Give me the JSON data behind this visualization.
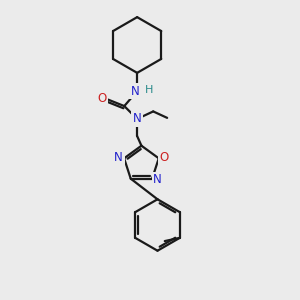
{
  "bg_color": "#ebebeb",
  "bond_color": "#1a1a1a",
  "N_color": "#2222cc",
  "O_color": "#cc2222",
  "H_color": "#2a8a8a",
  "bond_width": 1.6,
  "figsize": [
    3.0,
    3.0
  ],
  "dpi": 100,
  "xlim": [
    50,
    230
  ],
  "ylim": [
    10,
    290
  ]
}
